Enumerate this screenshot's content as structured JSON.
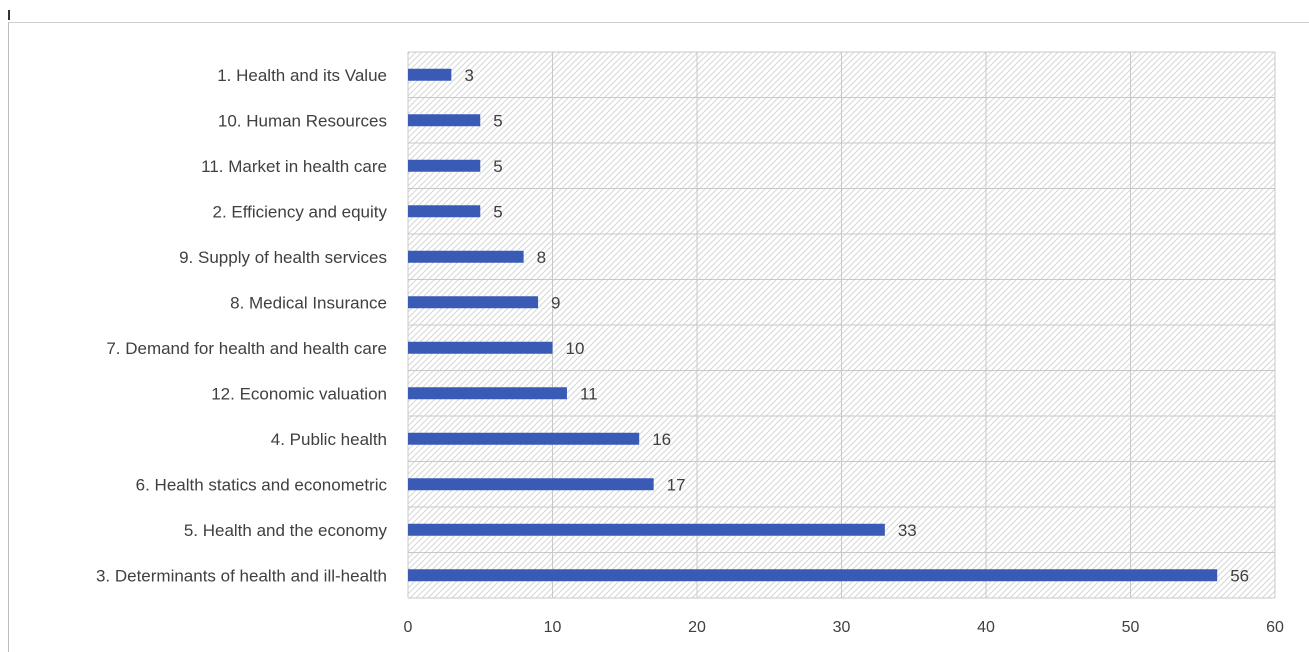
{
  "chart_data": {
    "type": "bar",
    "orientation": "horizontal",
    "title": "",
    "xlabel": "",
    "ylabel": "",
    "categories": [
      "1. Health and its Value",
      "10. Human Resources",
      "11. Market in health care",
      "2. Efficiency and equity",
      "9. Supply of health services",
      "8. Medical Insurance",
      "7. Demand for health and health care",
      "12. Economic valuation",
      "4. Public health",
      "6. Health statics and econometric",
      "5. Health and the economy",
      "3. Determinants of health and ill-health"
    ],
    "values": [
      3,
      5,
      5,
      5,
      8,
      9,
      10,
      11,
      16,
      17,
      33,
      56
    ],
    "xlim": [
      0,
      60
    ],
    "x_ticks": [
      0,
      10,
      20,
      30,
      40,
      50,
      60
    ],
    "grid": true,
    "plot_background": "hatched",
    "data_labels": true,
    "bar_color": "#3a5bb5",
    "grid_color": "#c8c8c8",
    "hatch_color": "#d6d6d6",
    "label_color": "#404040"
  }
}
